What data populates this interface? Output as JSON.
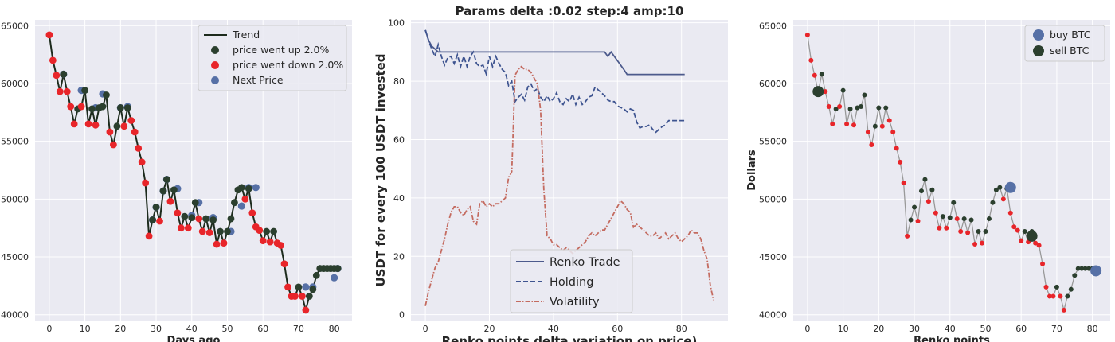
{
  "colors": {
    "up": "#2b3f2e",
    "down": "#e8252a",
    "next": "#5670a6",
    "trend": "#1d2b1d",
    "renko": "#4c5a8c",
    "holding": "#3e5490",
    "volatility": "#c46b60",
    "buy": "#5670a6",
    "sell": "#2b3f2e",
    "price_line": "#999999"
  },
  "chart_data": [
    {
      "type": "line",
      "title": "",
      "xlabel": "Days ago",
      "ylabel": "",
      "xlim": [
        -4,
        85
      ],
      "ylim": [
        39500,
        65500
      ],
      "xticks": [
        0,
        10,
        20,
        30,
        40,
        50,
        60,
        70,
        80
      ],
      "yticks": [
        40000,
        45000,
        50000,
        55000,
        60000,
        65000
      ],
      "legend": {
        "position": "top-right",
        "entries": [
          "Trend",
          "price went up 2.0%",
          "price went down 2.0%",
          "Next Price"
        ]
      },
      "x": [
        0,
        1,
        2,
        3,
        4,
        5,
        6,
        7,
        8,
        9,
        10,
        11,
        12,
        13,
        14,
        15,
        16,
        17,
        18,
        19,
        20,
        21,
        22,
        23,
        24,
        25,
        26,
        27,
        28,
        29,
        30,
        31,
        32,
        33,
        34,
        35,
        36,
        37,
        38,
        39,
        40,
        41,
        42,
        43,
        44,
        45,
        46,
        47,
        48,
        49,
        50,
        51,
        52,
        53,
        54,
        55,
        56,
        57,
        58,
        59,
        60,
        61,
        62,
        63,
        64,
        65,
        66,
        67,
        68,
        69,
        70,
        71,
        72,
        73,
        74,
        75,
        76,
        77,
        78,
        79,
        80,
        81
      ],
      "price": [
        64200,
        62000,
        60700,
        59300,
        60800,
        59300,
        58000,
        56500,
        57800,
        58000,
        59400,
        56500,
        57800,
        56400,
        57900,
        58000,
        59000,
        55800,
        54700,
        56300,
        57900,
        56300,
        57900,
        56800,
        55800,
        54400,
        53200,
        51400,
        46800,
        48200,
        49300,
        48100,
        50700,
        51700,
        49800,
        50800,
        48800,
        47500,
        48500,
        47500,
        48400,
        49700,
        48300,
        47200,
        48300,
        47100,
        48200,
        46100,
        47200,
        46200,
        47200,
        48300,
        49700,
        50800,
        51000,
        50000,
        50900,
        48800,
        47600,
        47300,
        46400,
        47200,
        46300,
        47200,
        46200,
        46000,
        44400,
        42400,
        41600,
        41600,
        42400,
        41600,
        40400,
        41600,
        42200,
        43400,
        44000,
        44000,
        44000,
        44000,
        44000,
        44000
      ],
      "dir": [
        "d",
        "d",
        "d",
        "d",
        "u",
        "d",
        "d",
        "d",
        "u",
        "d",
        "u",
        "d",
        "u",
        "d",
        "u",
        "u",
        "u",
        "d",
        "d",
        "u",
        "u",
        "d",
        "u",
        "d",
        "d",
        "d",
        "d",
        "d",
        "d",
        "u",
        "u",
        "d",
        "u",
        "u",
        "d",
        "u",
        "d",
        "d",
        "u",
        "d",
        "u",
        "u",
        "d",
        "d",
        "u",
        "d",
        "u",
        "d",
        "u",
        "d",
        "u",
        "u",
        "u",
        "u",
        "u",
        "d",
        "u",
        "d",
        "d",
        "d",
        "d",
        "u",
        "d",
        "u",
        "d",
        "d",
        "d",
        "d",
        "d",
        "d",
        "u",
        "d",
        "d",
        "u",
        "u",
        "u",
        "u",
        "u",
        "u",
        "u",
        "u",
        "u"
      ],
      "next": [
        {
          "x": 4,
          "y": 60800
        },
        {
          "x": 9,
          "y": 59400
        },
        {
          "x": 13,
          "y": 57900
        },
        {
          "x": 15,
          "y": 59100
        },
        {
          "x": 20,
          "y": 57900
        },
        {
          "x": 22,
          "y": 58000
        },
        {
          "x": 29,
          "y": 48200
        },
        {
          "x": 30,
          "y": 49300
        },
        {
          "x": 32,
          "y": 50700
        },
        {
          "x": 33,
          "y": 51700
        },
        {
          "x": 36,
          "y": 50900
        },
        {
          "x": 40,
          "y": 48600
        },
        {
          "x": 42,
          "y": 49700
        },
        {
          "x": 46,
          "y": 48400
        },
        {
          "x": 51,
          "y": 47200
        },
        {
          "x": 54,
          "y": 49400
        },
        {
          "x": 56,
          "y": 51000
        },
        {
          "x": 58,
          "y": 51000
        },
        {
          "x": 72,
          "y": 42400
        },
        {
          "x": 74,
          "y": 42400
        },
        {
          "x": 80,
          "y": 43200
        },
        {
          "x": 81,
          "y": 44000
        }
      ]
    },
    {
      "type": "line",
      "title": "Params delta :0.02 step:4 amp:10",
      "xlabel": "Renko points delta variation on price)",
      "ylabel": "USDT for every 100 USDT invested",
      "xlim": [
        -4.5,
        94.5
      ],
      "ylim": [
        -2,
        101
      ],
      "xticks": [
        0,
        20,
        40,
        60,
        80
      ],
      "yticks": [
        0,
        20,
        40,
        60,
        80,
        100
      ],
      "legend": {
        "position": "bottom-center",
        "entries": [
          "Renko Trade",
          "Holding",
          "Volatility"
        ]
      },
      "series": [
        {
          "name": "Renko Trade",
          "style": "solid",
          "x": [
            0,
            1,
            2,
            3,
            4,
            6,
            10,
            15,
            20,
            30,
            40,
            50,
            56,
            57,
            58,
            59,
            60,
            61,
            62,
            63,
            65,
            70,
            75,
            81
          ],
          "y": [
            97.5,
            94,
            92,
            91,
            90,
            90,
            90,
            90,
            90,
            90,
            90,
            90,
            90,
            88.5,
            90,
            88.5,
            87,
            85.5,
            84,
            82.3,
            82.3,
            82.3,
            82.3,
            82.3
          ]
        },
        {
          "name": "Holding",
          "style": "dashed",
          "x": [
            0,
            1,
            2,
            3,
            4,
            5,
            6,
            7,
            8,
            9,
            10,
            11,
            12,
            13,
            14,
            15,
            16,
            17,
            18,
            19,
            20,
            21,
            22,
            23,
            24,
            25,
            26,
            27,
            28,
            29,
            30,
            31,
            32,
            33,
            34,
            35,
            36,
            37,
            38,
            39,
            40,
            41,
            42,
            43,
            44,
            45,
            46,
            47,
            48,
            49,
            50,
            51,
            52,
            53,
            54,
            55,
            56,
            57,
            58,
            59,
            60,
            61,
            62,
            63,
            64,
            65,
            66,
            67,
            68,
            69,
            70,
            71,
            72,
            73,
            74,
            75,
            76,
            77,
            78,
            79,
            80,
            81
          ],
          "y": [
            97.5,
            94,
            91,
            88.5,
            92.5,
            88.5,
            85.5,
            88,
            88.5,
            86,
            89,
            85,
            88.5,
            85,
            88.5,
            90,
            86,
            85,
            85.5,
            82.5,
            88.5,
            85,
            88.5,
            86,
            84,
            83,
            78.5,
            80,
            73,
            74.5,
            75.5,
            73.5,
            78,
            79,
            76.5,
            77.5,
            74.5,
            73,
            75,
            73,
            74,
            76,
            73,
            72,
            74,
            73,
            75.5,
            72,
            74.5,
            72,
            73,
            74.5,
            75,
            78,
            77,
            76,
            75,
            73.5,
            73,
            73,
            71.5,
            71,
            70.5,
            69.5,
            70.5,
            70,
            66,
            64,
            64.5,
            64.5,
            65,
            63.5,
            62.5,
            63.5,
            64.5,
            65,
            66.5,
            66.5,
            66.5,
            66.5,
            66.5,
            66.5
          ]
        },
        {
          "name": "Volatility",
          "style": "dashdot",
          "x": [
            0,
            1,
            2,
            3,
            4,
            5,
            6,
            7,
            8,
            9,
            10,
            11,
            12,
            13,
            14,
            15,
            16,
            17,
            18,
            19,
            20,
            21,
            22,
            23,
            24,
            25,
            26,
            27,
            28,
            29,
            30,
            31,
            32,
            33,
            34,
            35,
            36,
            37,
            38,
            39,
            40,
            41,
            42,
            43,
            44,
            45,
            46,
            47,
            48,
            49,
            50,
            51,
            52,
            53,
            54,
            55,
            56,
            57,
            58,
            59,
            60,
            61,
            62,
            63,
            64,
            65,
            66,
            67,
            68,
            69,
            70,
            71,
            72,
            73,
            74,
            75,
            76,
            77,
            78,
            79,
            80,
            81,
            82,
            83,
            84,
            85,
            86,
            87,
            88,
            89,
            90
          ],
          "y": [
            3,
            8,
            12,
            16,
            18,
            22,
            26,
            31,
            35,
            37,
            37,
            35,
            34,
            36,
            37,
            32,
            31,
            38,
            39,
            37,
            38,
            37,
            38,
            38,
            39,
            40,
            47,
            49,
            82,
            84,
            85,
            84,
            84,
            83,
            81,
            79,
            70,
            43,
            27,
            26,
            24,
            24,
            23,
            22,
            23,
            22,
            21,
            22,
            23,
            24,
            25,
            27,
            28,
            27,
            28,
            29,
            29,
            31,
            33,
            35,
            37,
            39,
            38,
            36,
            35,
            30,
            31,
            30,
            29,
            28,
            27,
            27,
            28,
            26,
            27,
            28,
            26,
            27,
            28,
            26,
            25,
            26,
            27,
            29,
            28,
            28,
            26,
            22,
            19,
            10,
            5
          ]
        }
      ]
    },
    {
      "type": "line",
      "title": "",
      "xlabel": "Renko points",
      "ylabel": "Dollars",
      "xlim": [
        -4,
        85
      ],
      "ylim": [
        39500,
        65500
      ],
      "xticks": [
        0,
        10,
        20,
        30,
        40,
        50,
        60,
        70,
        80
      ],
      "yticks": [
        40000,
        45000,
        50000,
        55000,
        60000,
        65000
      ],
      "legend": {
        "position": "top-right",
        "entries": [
          "buy BTC",
          "sell BTC"
        ]
      },
      "buy": [
        {
          "x": 57,
          "y": 51000
        },
        {
          "x": 81,
          "y": 43800
        }
      ],
      "sell": [
        {
          "x": 3,
          "y": 59300
        },
        {
          "x": 63,
          "y": 46800
        }
      ]
    }
  ]
}
